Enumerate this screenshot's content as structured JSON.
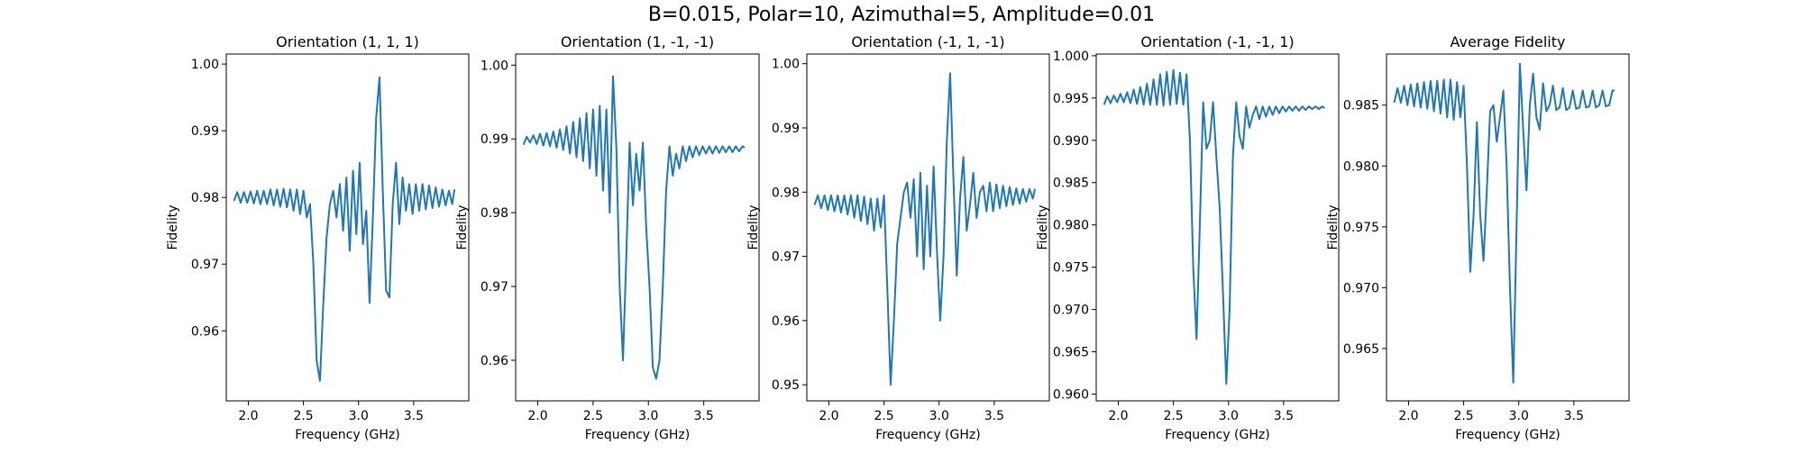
{
  "figure": {
    "suptitle": "B=0.015, Polar=10, Azimuthal=5, Amplitude=0.01",
    "line_color": "#1f77b4"
  },
  "chart_data": [
    {
      "type": "line",
      "title": "Orientation (1, 1, 1)",
      "xlabel": "Frequency (GHz)",
      "ylabel": "Fidelity",
      "xlim": [
        1.8,
        4.0
      ],
      "ylim": [
        0.9495,
        1.0015
      ],
      "xticks": [
        2.0,
        2.5,
        3.0,
        3.5
      ],
      "xtick_labels": [
        "2.0",
        "2.5",
        "3.0",
        "3.5"
      ],
      "yticks": [
        0.96,
        0.97,
        0.98,
        0.99,
        1.0
      ],
      "ytick_labels": [
        "0.96",
        "0.97",
        "0.98",
        "0.99",
        "1.00"
      ],
      "series": [
        {
          "x": [
            1.87,
            1.9,
            1.93,
            1.96,
            1.99,
            2.02,
            2.05,
            2.08,
            2.11,
            2.14,
            2.17,
            2.2,
            2.23,
            2.26,
            2.29,
            2.32,
            2.35,
            2.38,
            2.41,
            2.44,
            2.47,
            2.5,
            2.53,
            2.56,
            2.59,
            2.62,
            2.65,
            2.68,
            2.71,
            2.74,
            2.77,
            2.8,
            2.83,
            2.86,
            2.89,
            2.92,
            2.95,
            2.98,
            3.01,
            3.04,
            3.07,
            3.1,
            3.13,
            3.16,
            3.19,
            3.22,
            3.25,
            3.28,
            3.31,
            3.34,
            3.37,
            3.4,
            3.43,
            3.46,
            3.49,
            3.52,
            3.55,
            3.58,
            3.61,
            3.64,
            3.67,
            3.7,
            3.73,
            3.76,
            3.79,
            3.82,
            3.85,
            3.87
          ],
          "y": [
            0.9795,
            0.9808,
            0.9792,
            0.9808,
            0.9792,
            0.9809,
            0.9791,
            0.981,
            0.979,
            0.981,
            0.979,
            0.9812,
            0.9788,
            0.9812,
            0.9786,
            0.9813,
            0.9785,
            0.9812,
            0.978,
            0.9812,
            0.9775,
            0.981,
            0.977,
            0.979,
            0.97,
            0.9555,
            0.9525,
            0.964,
            0.974,
            0.979,
            0.981,
            0.977,
            0.982,
            0.975,
            0.983,
            0.972,
            0.984,
            0.9745,
            0.9852,
            0.973,
            0.978,
            0.9642,
            0.977,
            0.992,
            0.998,
            0.981,
            0.966,
            0.965,
            0.979,
            0.9852,
            0.976,
            0.983,
            0.978,
            0.982,
            0.9775,
            0.982,
            0.978,
            0.982,
            0.9782,
            0.9818,
            0.9784,
            0.9815,
            0.9786,
            0.9812,
            0.9788,
            0.981,
            0.979,
            0.9812
          ]
        }
      ]
    },
    {
      "type": "line",
      "title": "Orientation (1, -1, -1)",
      "xlabel": "Frequency (GHz)",
      "ylabel": "Fidelity",
      "xlim": [
        1.8,
        4.0
      ],
      "ylim": [
        0.9545,
        1.0015
      ],
      "xticks": [
        2.0,
        2.5,
        3.0,
        3.5
      ],
      "xtick_labels": [
        "2.0",
        "2.5",
        "3.0",
        "3.5"
      ],
      "yticks": [
        0.96,
        0.97,
        0.98,
        0.99,
        1.0
      ],
      "ytick_labels": [
        "0.96",
        "0.97",
        "0.98",
        "0.99",
        "1.00"
      ],
      "series": [
        {
          "x": [
            1.87,
            1.9,
            1.93,
            1.96,
            1.99,
            2.02,
            2.05,
            2.08,
            2.11,
            2.14,
            2.17,
            2.2,
            2.23,
            2.26,
            2.29,
            2.32,
            2.35,
            2.38,
            2.41,
            2.44,
            2.47,
            2.5,
            2.53,
            2.56,
            2.59,
            2.62,
            2.65,
            2.68,
            2.71,
            2.74,
            2.77,
            2.8,
            2.83,
            2.86,
            2.89,
            2.92,
            2.95,
            2.98,
            3.01,
            3.04,
            3.07,
            3.1,
            3.13,
            3.16,
            3.19,
            3.22,
            3.25,
            3.28,
            3.31,
            3.34,
            3.37,
            3.4,
            3.43,
            3.46,
            3.49,
            3.52,
            3.55,
            3.58,
            3.61,
            3.64,
            3.67,
            3.7,
            3.73,
            3.76,
            3.79,
            3.82,
            3.85,
            3.87
          ],
          "y": [
            0.9892,
            0.9903,
            0.9895,
            0.9905,
            0.9893,
            0.9907,
            0.9891,
            0.9908,
            0.989,
            0.991,
            0.9888,
            0.9913,
            0.9885,
            0.9917,
            0.988,
            0.9923,
            0.9875,
            0.9928,
            0.987,
            0.9935,
            0.986,
            0.994,
            0.985,
            0.9945,
            0.983,
            0.994,
            0.98,
            0.9985,
            0.989,
            0.97,
            0.96,
            0.974,
            0.9895,
            0.981,
            0.988,
            0.983,
            0.9895,
            0.978,
            0.97,
            0.959,
            0.9575,
            0.96,
            0.97,
            0.983,
            0.989,
            0.985,
            0.988,
            0.986,
            0.989,
            0.987,
            0.989,
            0.9875,
            0.989,
            0.9878,
            0.989,
            0.988,
            0.989,
            0.988,
            0.989,
            0.9881,
            0.989,
            0.9882,
            0.989,
            0.9882,
            0.989,
            0.9883,
            0.989,
            0.9888
          ]
        }
      ]
    },
    {
      "type": "line",
      "title": "Orientation (-1, 1, -1)",
      "xlabel": "Frequency (GHz)",
      "ylabel": "Fidelity",
      "xlim": [
        1.8,
        4.0
      ],
      "ylim": [
        0.9475,
        1.0015
      ],
      "xticks": [
        2.0,
        2.5,
        3.0,
        3.5
      ],
      "xtick_labels": [
        "2.0",
        "2.5",
        "3.0",
        "3.5"
      ],
      "yticks": [
        0.95,
        0.96,
        0.97,
        0.98,
        0.99,
        1.0
      ],
      "ytick_labels": [
        "0.95",
        "0.96",
        "0.97",
        "0.98",
        "0.99",
        "1.00"
      ],
      "series": [
        {
          "x": [
            1.87,
            1.9,
            1.93,
            1.96,
            1.99,
            2.02,
            2.05,
            2.08,
            2.11,
            2.14,
            2.17,
            2.2,
            2.23,
            2.26,
            2.29,
            2.32,
            2.35,
            2.38,
            2.41,
            2.44,
            2.47,
            2.5,
            2.53,
            2.56,
            2.59,
            2.62,
            2.65,
            2.68,
            2.71,
            2.74,
            2.77,
            2.8,
            2.83,
            2.86,
            2.89,
            2.92,
            2.95,
            2.98,
            3.01,
            3.04,
            3.07,
            3.1,
            3.13,
            3.16,
            3.19,
            3.22,
            3.25,
            3.28,
            3.31,
            3.34,
            3.37,
            3.4,
            3.43,
            3.46,
            3.49,
            3.52,
            3.55,
            3.58,
            3.61,
            3.64,
            3.67,
            3.7,
            3.73,
            3.76,
            3.79,
            3.82,
            3.85,
            3.87
          ],
          "y": [
            0.978,
            0.9795,
            0.9775,
            0.9795,
            0.9772,
            0.9795,
            0.977,
            0.9795,
            0.9768,
            0.9795,
            0.9765,
            0.9795,
            0.976,
            0.9795,
            0.9755,
            0.9793,
            0.975,
            0.979,
            0.974,
            0.979,
            0.9745,
            0.9795,
            0.965,
            0.95,
            0.96,
            0.972,
            0.976,
            0.98,
            0.9815,
            0.976,
            0.982,
            0.97,
            0.983,
            0.968,
            0.981,
            0.97,
            0.984,
            0.971,
            0.96,
            0.97,
            0.988,
            0.9985,
            0.982,
            0.967,
            0.979,
            0.9855,
            0.974,
            0.978,
            0.983,
            0.976,
            0.98,
            0.981,
            0.977,
            0.9815,
            0.977,
            0.9812,
            0.9775,
            0.981,
            0.9778,
            0.9808,
            0.978,
            0.9806,
            0.9782,
            0.9805,
            0.9785,
            0.9805,
            0.979,
            0.9805
          ]
        }
      ]
    },
    {
      "type": "line",
      "title": "Orientation (-1, -1, 1)",
      "xlabel": "Frequency (GHz)",
      "ylabel": "Fidelity",
      "xlim": [
        1.8,
        4.0
      ],
      "ylim": [
        0.9592,
        1.0002
      ],
      "xticks": [
        2.0,
        2.5,
        3.0,
        3.5
      ],
      "xtick_labels": [
        "2.0",
        "2.5",
        "3.0",
        "3.5"
      ],
      "yticks": [
        0.96,
        0.965,
        0.97,
        0.975,
        0.98,
        0.985,
        0.99,
        0.995,
        1.0
      ],
      "ytick_labels": [
        "0.960",
        "0.965",
        "0.970",
        "0.975",
        "0.980",
        "0.985",
        "0.990",
        "0.995",
        "1.000"
      ],
      "series": [
        {
          "x": [
            1.87,
            1.9,
            1.93,
            1.96,
            1.99,
            2.02,
            2.05,
            2.08,
            2.11,
            2.14,
            2.17,
            2.2,
            2.23,
            2.26,
            2.29,
            2.32,
            2.35,
            2.38,
            2.41,
            2.44,
            2.47,
            2.5,
            2.53,
            2.56,
            2.59,
            2.62,
            2.65,
            2.68,
            2.71,
            2.74,
            2.77,
            2.8,
            2.83,
            2.86,
            2.89,
            2.92,
            2.95,
            2.98,
            3.01,
            3.04,
            3.07,
            3.1,
            3.13,
            3.16,
            3.19,
            3.22,
            3.25,
            3.28,
            3.31,
            3.34,
            3.37,
            3.4,
            3.43,
            3.46,
            3.49,
            3.52,
            3.55,
            3.58,
            3.61,
            3.64,
            3.67,
            3.7,
            3.73,
            3.76,
            3.79,
            3.82,
            3.85,
            3.87
          ],
          "y": [
            0.9942,
            0.9952,
            0.9944,
            0.9953,
            0.9945,
            0.9955,
            0.9945,
            0.9957,
            0.9944,
            0.996,
            0.9943,
            0.9963,
            0.9942,
            0.9967,
            0.9942,
            0.9972,
            0.9942,
            0.9978,
            0.9941,
            0.9981,
            0.9942,
            0.9983,
            0.9943,
            0.998,
            0.9942,
            0.9978,
            0.99,
            0.975,
            0.9665,
            0.98,
            0.9945,
            0.989,
            0.99,
            0.9945,
            0.988,
            0.982,
            0.972,
            0.9612,
            0.97,
            0.988,
            0.9945,
            0.9905,
            0.989,
            0.994,
            0.9915,
            0.993,
            0.994,
            0.9925,
            0.994,
            0.9928,
            0.994,
            0.993,
            0.994,
            0.9932,
            0.994,
            0.9934,
            0.994,
            0.9935,
            0.994,
            0.9935,
            0.994,
            0.9936,
            0.994,
            0.9937,
            0.994,
            0.9937,
            0.994,
            0.9938
          ]
        }
      ]
    },
    {
      "type": "line",
      "title": "Average Fidelity",
      "xlabel": "Frequency (GHz)",
      "ylabel": "Fidelity",
      "xlim": [
        1.8,
        4.0
      ],
      "ylim": [
        0.9607,
        0.9892
      ],
      "xticks": [
        2.0,
        2.5,
        3.0,
        3.5
      ],
      "xtick_labels": [
        "2.0",
        "2.5",
        "3.0",
        "3.5"
      ],
      "yticks": [
        0.965,
        0.97,
        0.975,
        0.98,
        0.985
      ],
      "ytick_labels": [
        "0.965",
        "0.970",
        "0.975",
        "0.980",
        "0.985"
      ],
      "series": [
        {
          "x": [
            1.87,
            1.9,
            1.93,
            1.96,
            1.99,
            2.02,
            2.05,
            2.08,
            2.11,
            2.14,
            2.17,
            2.2,
            2.23,
            2.26,
            2.29,
            2.32,
            2.35,
            2.38,
            2.41,
            2.44,
            2.47,
            2.5,
            2.53,
            2.56,
            2.59,
            2.62,
            2.65,
            2.68,
            2.71,
            2.74,
            2.77,
            2.8,
            2.83,
            2.86,
            2.89,
            2.92,
            2.95,
            2.98,
            3.01,
            3.04,
            3.07,
            3.1,
            3.13,
            3.16,
            3.19,
            3.22,
            3.25,
            3.28,
            3.31,
            3.34,
            3.37,
            3.4,
            3.43,
            3.46,
            3.49,
            3.52,
            3.55,
            3.58,
            3.61,
            3.64,
            3.67,
            3.7,
            3.73,
            3.76,
            3.79,
            3.82,
            3.85,
            3.87
          ],
          "y": [
            0.9852,
            0.9864,
            0.9852,
            0.9866,
            0.985,
            0.9867,
            0.9849,
            0.9868,
            0.9848,
            0.9869,
            0.9847,
            0.987,
            0.9845,
            0.987,
            0.9843,
            0.9871,
            0.984,
            0.9871,
            0.9838,
            0.9869,
            0.984,
            0.9866,
            0.98,
            0.9713,
            0.976,
            0.9836,
            0.976,
            0.9722,
            0.978,
            0.9845,
            0.985,
            0.982,
            0.984,
            0.9862,
            0.98,
            0.97,
            0.9622,
            0.975,
            0.9884,
            0.983,
            0.978,
            0.985,
            0.9876,
            0.984,
            0.983,
            0.9868,
            0.9845,
            0.985,
            0.9866,
            0.9846,
            0.9848,
            0.9864,
            0.9846,
            0.9848,
            0.9862,
            0.9847,
            0.9848,
            0.9862,
            0.9848,
            0.9849,
            0.9862,
            0.9848,
            0.985,
            0.9862,
            0.9849,
            0.985,
            0.9862,
            0.9862
          ]
        }
      ]
    }
  ]
}
